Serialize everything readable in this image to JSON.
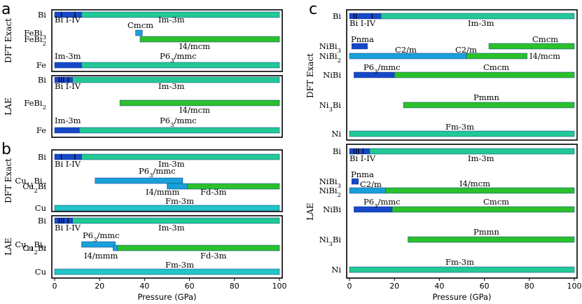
{
  "chart_data": [
    {
      "type": "bar",
      "panel": "a",
      "blocks": [
        {
          "method": "DFT Exact",
          "rows": [
            {
              "label": "Bi",
              "segments": [
                {
                  "phase": "Bi I-IV",
                  "from": 0,
                  "to": 12,
                  "color": "#1748c8",
                  "ticks": [
                    3,
                    9
                  ]
                },
                {
                  "phase": "Im-3m",
                  "from": 12,
                  "to": 100,
                  "color": "#22c994"
                }
              ]
            },
            {
              "label": "FeBi3",
              "segments": [
                {
                  "phase": "Cmcm",
                  "from": 36,
                  "to": 39,
                  "color": "#1aa0d8"
                }
              ]
            },
            {
              "label": "FeBi2",
              "segments": [
                {
                  "phase": "I4/mcm",
                  "from": 38,
                  "to": 100,
                  "color": "#2bc12b"
                }
              ]
            },
            {
              "label": "Fe",
              "segments": [
                {
                  "phase": "Im-3m",
                  "from": 0,
                  "to": 12,
                  "color": "#1748c8"
                },
                {
                  "phase": "P63/mmc",
                  "from": 12,
                  "to": 100,
                  "color": "#22c994"
                }
              ]
            }
          ]
        },
        {
          "method": "LAE",
          "rows": [
            {
              "label": "Bi",
              "segments": [
                {
                  "phase": "Bi I-IV",
                  "from": 0,
                  "to": 8,
                  "color": "#1748c8",
                  "ticks": [
                    2,
                    3,
                    4,
                    6
                  ]
                },
                {
                  "phase": "Im-3m",
                  "from": 8,
                  "to": 100,
                  "color": "#22c994"
                }
              ]
            },
            {
              "label": "FeBi2",
              "segments": [
                {
                  "phase": "I4/mcm",
                  "from": 29,
                  "to": 100,
                  "color": "#2bc12b"
                }
              ]
            },
            {
              "label": "Fe",
              "segments": [
                {
                  "phase": "Im-3m",
                  "from": 0,
                  "to": 11,
                  "color": "#1748c8"
                },
                {
                  "phase": "P63/mmc",
                  "from": 11,
                  "to": 100,
                  "color": "#22c994"
                }
              ]
            }
          ]
        }
      ],
      "xlim": [
        0,
        100
      ],
      "xticks": []
    },
    {
      "type": "bar",
      "panel": "b",
      "blocks": [
        {
          "method": "DFT Exact",
          "rows": [
            {
              "label": "Bi",
              "segments": [
                {
                  "phase": "Bi I-IV",
                  "from": 0,
                  "to": 12,
                  "color": "#1748c8",
                  "ticks": [
                    3,
                    9
                  ]
                },
                {
                  "phase": "Im-3m",
                  "from": 12,
                  "to": 100,
                  "color": "#22c994"
                }
              ]
            },
            {
              "label": "Cu11Bi7",
              "segments": [
                {
                  "phase": "P63/mmc",
                  "from": 18,
                  "to": 57,
                  "color": "#1aa0d8"
                }
              ]
            },
            {
              "label": "Cu2Bi",
              "segments": [
                {
                  "phase": "I4/mmm",
                  "from": 50,
                  "to": 59,
                  "color": "#1aa0d8"
                },
                {
                  "phase": "Fd-3m",
                  "from": 59,
                  "to": 100,
                  "color": "#2bc12b"
                }
              ]
            },
            {
              "label": "Cu",
              "segments": [
                {
                  "phase": "Fm-3m",
                  "from": 0,
                  "to": 100,
                  "color": "#22c5c5"
                }
              ]
            }
          ]
        },
        {
          "method": "LAE",
          "rows": [
            {
              "label": "Bi",
              "segments": [
                {
                  "phase": "Bi I-IV",
                  "from": 0,
                  "to": 8,
                  "color": "#1748c8",
                  "ticks": [
                    2,
                    3,
                    4,
                    6
                  ]
                },
                {
                  "phase": "Im-3m",
                  "from": 8,
                  "to": 100,
                  "color": "#22c994"
                }
              ]
            },
            {
              "label": "Cu11Bi7",
              "segments": [
                {
                  "phase": "P63/mmc",
                  "from": 12,
                  "to": 27,
                  "color": "#1aa0d8"
                }
              ]
            },
            {
              "label": "Cu2Bi",
              "segments": [
                {
                  "phase": "I4/mmm",
                  "from": 26,
                  "to": 28,
                  "color": "#1aa0d8"
                },
                {
                  "phase": "Fd-3m",
                  "from": 28,
                  "to": 100,
                  "color": "#2bc12b"
                }
              ]
            },
            {
              "label": "Cu",
              "segments": [
                {
                  "phase": "Fm-3m",
                  "from": 0,
                  "to": 100,
                  "color": "#22c5c5"
                }
              ]
            }
          ]
        }
      ],
      "xlim": [
        0,
        100
      ],
      "xticks": [
        0,
        20,
        40,
        60,
        80,
        100
      ],
      "xlabel": "Pressure (GPa)"
    },
    {
      "type": "bar",
      "panel": "c",
      "blocks": [
        {
          "method": "DFT Exact",
          "rows": [
            {
              "label": "Bi",
              "segments": [
                {
                  "phase": "Bi I-IV",
                  "from": 0,
                  "to": 14,
                  "color": "#1748c8",
                  "ticks": [
                    2,
                    3,
                    10
                  ]
                },
                {
                  "phase": "Im-3m",
                  "from": 14,
                  "to": 100,
                  "color": "#22c994"
                }
              ]
            },
            {
              "label": "NiBi3",
              "segments": [
                {
                  "phase": "Pnma",
                  "from": 1,
                  "to": 8,
                  "color": "#1748c8"
                },
                {
                  "phase": "Cmcm",
                  "from": 62,
                  "to": 100,
                  "color": "#2bc12b"
                }
              ]
            },
            {
              "label": "NiBi2",
              "segments": [
                {
                  "phase": "C2/m",
                  "from": 0,
                  "to": 52,
                  "color": "#1aa0d8"
                },
                {
                  "phase": "C2/m",
                  "from": 52,
                  "to": 79,
                  "color": "#2bc12b"
                },
                {
                  "phase": "I4/mcm",
                  "from": 79,
                  "to": 79,
                  "color": "#2bc12b"
                }
              ]
            },
            {
              "label": "NiBi",
              "segments": [
                {
                  "phase": "P63/mmc",
                  "from": 2,
                  "to": 20,
                  "color": "#1748c8"
                },
                {
                  "phase": "Cmcm",
                  "from": 20,
                  "to": 100,
                  "color": "#2bc12b"
                }
              ]
            },
            {
              "label": "Ni3Bi",
              "segments": [
                {
                  "phase": "Pmmn",
                  "from": 24,
                  "to": 100,
                  "color": "#2bc12b"
                }
              ]
            },
            {
              "label": "Ni",
              "segments": [
                {
                  "phase": "Fm-3m",
                  "from": 0,
                  "to": 100,
                  "color": "#22c994"
                }
              ]
            }
          ]
        },
        {
          "method": "LAE",
          "rows": [
            {
              "label": "Bi",
              "segments": [
                {
                  "phase": "Bi I-IV",
                  "from": 0,
                  "to": 9,
                  "color": "#1748c8",
                  "ticks": [
                    2,
                    3,
                    4,
                    6
                  ]
                },
                {
                  "phase": "Im-3m",
                  "from": 9,
                  "to": 100,
                  "color": "#22c994"
                }
              ]
            },
            {
              "label": "NiBi3",
              "segments": [
                {
                  "phase": "Pnma",
                  "from": 1,
                  "to": 4,
                  "color": "#1748c8"
                }
              ]
            },
            {
              "label": "NiBi2",
              "segments": [
                {
                  "phase": "C2/m",
                  "from": 0,
                  "to": 16,
                  "color": "#1aa0d8"
                },
                {
                  "phase": "I4/mcm",
                  "from": 16,
                  "to": 100,
                  "color": "#2bc12b"
                }
              ]
            },
            {
              "label": "NiBi",
              "segments": [
                {
                  "phase": "P63/mmc",
                  "from": 2,
                  "to": 19,
                  "color": "#1748c8"
                },
                {
                  "phase": "Cmcm",
                  "from": 19,
                  "to": 100,
                  "color": "#2bc12b"
                }
              ]
            },
            {
              "label": "Ni3Bi",
              "segments": [
                {
                  "phase": "Pmmn",
                  "from": 26,
                  "to": 100,
                  "color": "#2bc12b"
                }
              ]
            },
            {
              "label": "Ni",
              "segments": [
                {
                  "phase": "Fm-3m",
                  "from": 0,
                  "to": 100,
                  "color": "#22c994"
                }
              ]
            }
          ]
        }
      ],
      "xlim": [
        0,
        100
      ],
      "xticks": [
        0,
        20,
        40,
        60,
        80,
        100
      ],
      "xlabel": "Pressure (GPa)"
    }
  ]
}
